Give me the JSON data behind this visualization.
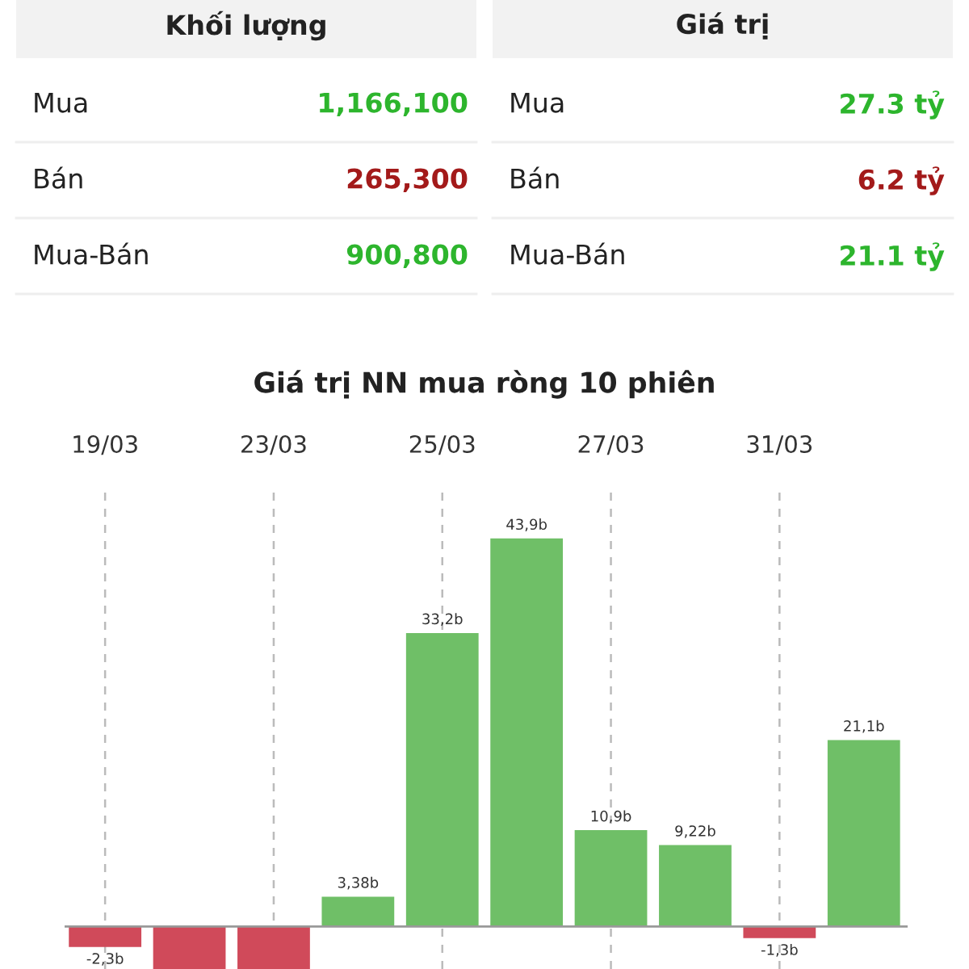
{
  "chart_data": [
    {
      "type": "other",
      "categories": [
        "Khối lượng",
        "Giá trị"
      ],
      "y_categories": [
        "Mua",
        "Bán",
        "Mua-Bán"
      ],
      "cell_labels": [
        [
          "1,166,100",
          "27.3 tỷ"
        ],
        [
          "265,300",
          "6.2 tỷ"
        ],
        [
          "900,800",
          "21.1 tỷ"
        ]
      ],
      "colors": [
        [
          "#2db52d",
          "#2db52d"
        ],
        [
          "#a31a1a",
          "#a31a1a"
        ],
        [
          "#2db52d",
          "#2db52d"
        ]
      ]
    },
    {
      "type": "bar",
      "title": "Giá trị NN mua ròng 10 phiên",
      "categories": [
        "19/03",
        null,
        "23/03",
        null,
        "25/03",
        null,
        "27/03",
        null,
        "31/03",
        null
      ],
      "values": [
        -2.3,
        -4.8,
        -4.8,
        3.38,
        33.2,
        43.9,
        10.9,
        9.22,
        -1.3,
        21.1
      ],
      "value_labels": [
        "-2,3b",
        null,
        null,
        "3,38b",
        "33,2b",
        "43,9b",
        "10,9b",
        "9,22b",
        "-1,3b",
        "21,1b"
      ],
      "colors": [
        "#d04a5a",
        "#d04a5a",
        "#d04a5a",
        "#6fbf67",
        "#6fbf67",
        "#6fbf67",
        "#6fbf67",
        "#6fbf67",
        "#d04a5a",
        "#6fbf67"
      ],
      "ylim": [
        -4.8,
        50
      ],
      "grid": "x"
    }
  ]
}
